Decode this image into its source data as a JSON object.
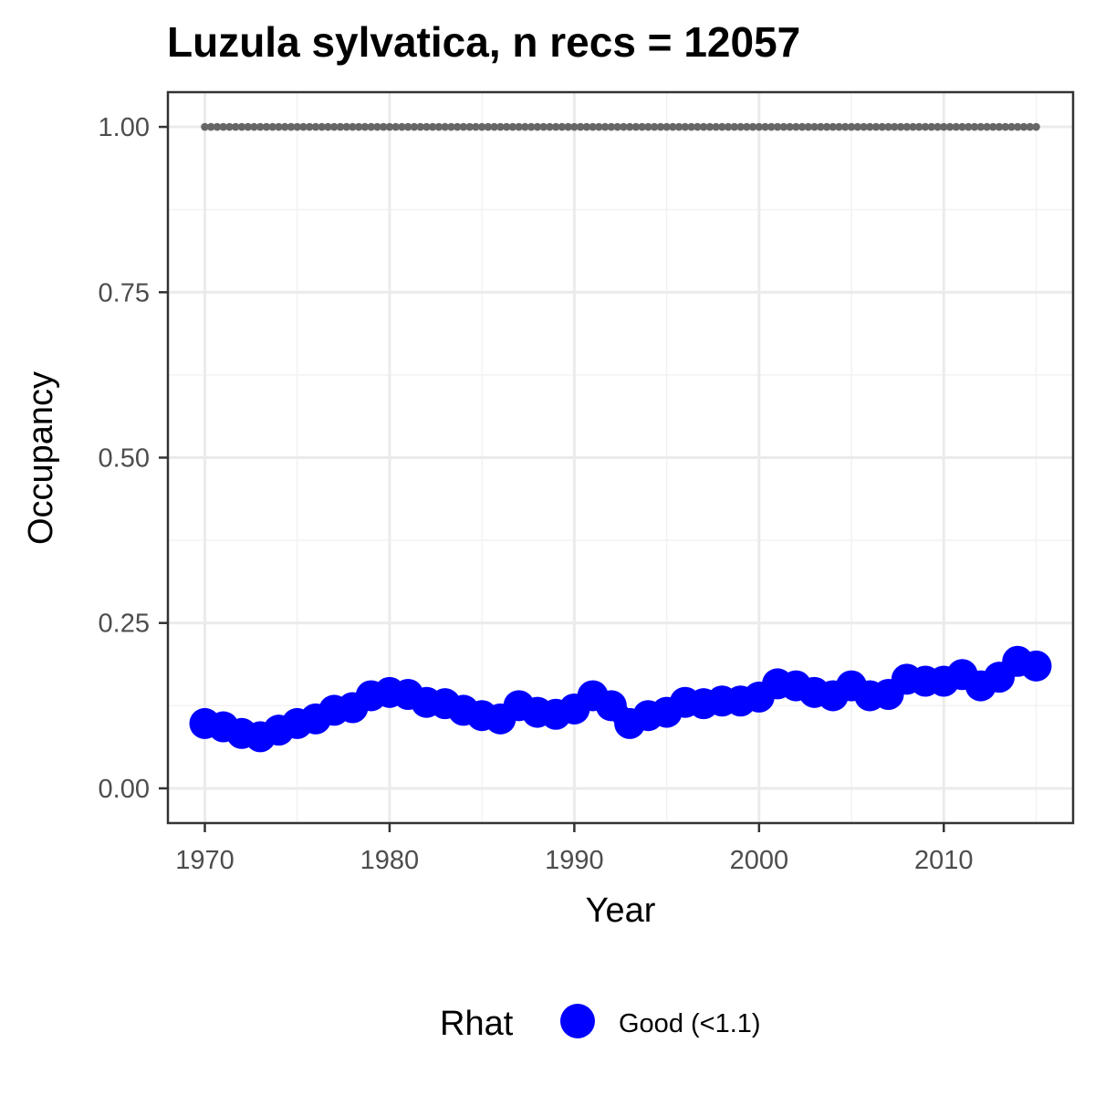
{
  "chart_data": {
    "type": "scatter",
    "title": "Luzula sylvatica, n recs = 12057",
    "xlabel": "Year",
    "ylabel": "Occupancy",
    "xlim": [
      1968,
      2017
    ],
    "ylim": [
      -0.0525,
      1.0525
    ],
    "x_ticks": [
      1970,
      1980,
      1990,
      2000,
      2010
    ],
    "y_ticks": [
      0.0,
      0.25,
      0.5,
      0.75,
      1.0
    ],
    "x_tick_labels": [
      "1970",
      "1980",
      "1990",
      "2000",
      "2010"
    ],
    "y_tick_labels": [
      "0.00",
      "0.25",
      "0.50",
      "0.75",
      "1.00"
    ],
    "grid": true,
    "legend": {
      "title": "Rhat",
      "position": "bottom",
      "entries": [
        {
          "label": "Good (<1.1)",
          "color": "#0000ff"
        }
      ]
    },
    "series": [
      {
        "name": "Good (<1.1)",
        "color": "#0000ff",
        "style": "large-points-with-line",
        "x": [
          1970,
          1971,
          1972,
          1973,
          1974,
          1975,
          1976,
          1977,
          1978,
          1979,
          1980,
          1981,
          1982,
          1983,
          1984,
          1985,
          1986,
          1987,
          1988,
          1989,
          1990,
          1991,
          1992,
          1993,
          1994,
          1995,
          1996,
          1997,
          1998,
          1999,
          2000,
          2001,
          2002,
          2003,
          2004,
          2005,
          2006,
          2007,
          2008,
          2009,
          2010,
          2011,
          2012,
          2013,
          2014,
          2015
        ],
        "y": [
          0.098,
          0.093,
          0.083,
          0.078,
          0.088,
          0.098,
          0.105,
          0.118,
          0.122,
          0.14,
          0.145,
          0.142,
          0.13,
          0.128,
          0.118,
          0.11,
          0.105,
          0.125,
          0.115,
          0.112,
          0.12,
          0.14,
          0.125,
          0.098,
          0.11,
          0.115,
          0.13,
          0.128,
          0.132,
          0.132,
          0.138,
          0.158,
          0.155,
          0.145,
          0.14,
          0.155,
          0.14,
          0.142,
          0.165,
          0.162,
          0.162,
          0.172,
          0.155,
          0.168,
          0.192,
          0.185
        ]
      },
      {
        "name": "",
        "color": "#666666",
        "style": "dotted",
        "x": [
          1970,
          1971,
          1972,
          1973,
          1974,
          1975,
          1976,
          1977,
          1978,
          1979,
          1980,
          1981,
          1982,
          1983,
          1984,
          1985,
          1986,
          1987,
          1988,
          1989,
          1990,
          1991,
          1992,
          1993,
          1994,
          1995,
          1996,
          1997,
          1998,
          1999,
          2000,
          2001,
          2002,
          2003,
          2004,
          2005,
          2006,
          2007,
          2008,
          2009,
          2010,
          2011,
          2012,
          2013,
          2014,
          2015
        ],
        "y": [
          1,
          1,
          1,
          1,
          1,
          1,
          1,
          1,
          1,
          1,
          1,
          1,
          1,
          1,
          1,
          1,
          1,
          1,
          1,
          1,
          1,
          1,
          1,
          1,
          1,
          1,
          1,
          1,
          1,
          1,
          1,
          1,
          1,
          1,
          1,
          1,
          1,
          1,
          1,
          1,
          1,
          1,
          1,
          1,
          1,
          1
        ]
      }
    ]
  }
}
